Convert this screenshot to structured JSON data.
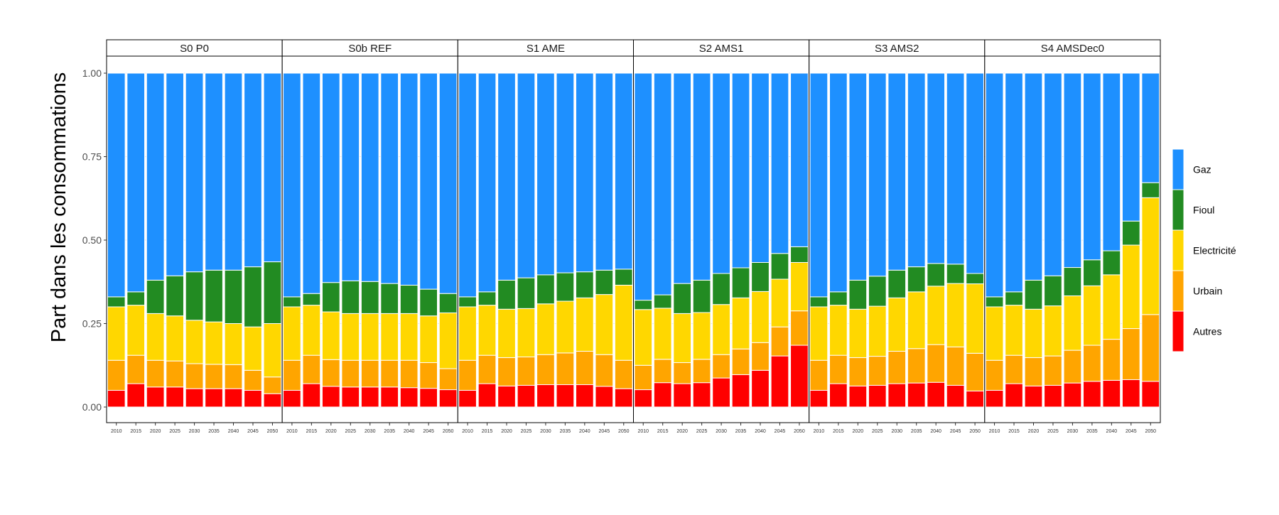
{
  "chart_data": {
    "type": "bar",
    "stacked": true,
    "ylabel": "Part dans les consommations",
    "xlabel": "",
    "ylim": [
      0,
      1
    ],
    "y_ticks": [
      "0.00",
      "0.25",
      "0.50",
      "0.75",
      "1.00"
    ],
    "y_tick_values": [
      0,
      0.25,
      0.5,
      0.75,
      1
    ],
    "categories": [
      "2010",
      "2015",
      "2020",
      "2025",
      "2030",
      "2035",
      "2040",
      "2045",
      "2050"
    ],
    "x_tick_labels": [
      "2010",
      "2015",
      "2020",
      "2025",
      "2030",
      "2035",
      "2040",
      "2045",
      "2050"
    ],
    "legend_position": "right",
    "grid": true,
    "series_order": [
      "Autres",
      "Urbain",
      "Electricité",
      "Fioul",
      "Gaz"
    ],
    "legend": [
      {
        "name": "Gaz",
        "color": "#1E90FF"
      },
      {
        "name": "Fioul",
        "color": "#228B22"
      },
      {
        "name": "Electricité",
        "color": "#FFD700"
      },
      {
        "name": "Urbain",
        "color": "#FFA500"
      },
      {
        "name": "Autres",
        "color": "#FF0000"
      }
    ],
    "panels": [
      {
        "title": "S0 P0",
        "series": [
          {
            "name": "Autres",
            "values": [
              0.05,
              0.07,
              0.06,
              0.06,
              0.055,
              0.055,
              0.055,
              0.05,
              0.04
            ]
          },
          {
            "name": "Urbain",
            "values": [
              0.09,
              0.085,
              0.08,
              0.078,
              0.075,
              0.073,
              0.072,
              0.06,
              0.05
            ]
          },
          {
            "name": "Electricité",
            "values": [
              0.16,
              0.15,
              0.14,
              0.135,
              0.13,
              0.127,
              0.123,
              0.13,
              0.16
            ]
          },
          {
            "name": "Fioul",
            "values": [
              0.03,
              0.04,
              0.1,
              0.12,
              0.145,
              0.155,
              0.16,
              0.18,
              0.185
            ]
          },
          {
            "name": "Gaz",
            "values": [
              0.67,
              0.655,
              0.62,
              0.607,
              0.595,
              0.59,
              0.59,
              0.58,
              0.565
            ]
          }
        ]
      },
      {
        "title": "S0b REF",
        "series": [
          {
            "name": "Autres",
            "values": [
              0.05,
              0.07,
              0.062,
              0.06,
              0.06,
              0.06,
              0.058,
              0.056,
              0.052
            ]
          },
          {
            "name": "Urbain",
            "values": [
              0.09,
              0.085,
              0.08,
              0.08,
              0.08,
              0.08,
              0.082,
              0.077,
              0.063
            ]
          },
          {
            "name": "Electricité",
            "values": [
              0.16,
              0.15,
              0.143,
              0.14,
              0.14,
              0.14,
              0.14,
              0.14,
              0.167
            ]
          },
          {
            "name": "Fioul",
            "values": [
              0.03,
              0.035,
              0.088,
              0.098,
              0.096,
              0.09,
              0.085,
              0.08,
              0.058
            ]
          },
          {
            "name": "Gaz",
            "values": [
              0.67,
              0.66,
              0.627,
              0.622,
              0.624,
              0.63,
              0.635,
              0.647,
              0.66
            ]
          }
        ]
      },
      {
        "title": "S1 AME",
        "series": [
          {
            "name": "Autres",
            "values": [
              0.05,
              0.07,
              0.063,
              0.065,
              0.067,
              0.067,
              0.067,
              0.062,
              0.055
            ]
          },
          {
            "name": "Urbain",
            "values": [
              0.09,
              0.085,
              0.085,
              0.085,
              0.09,
              0.095,
              0.1,
              0.095,
              0.085
            ]
          },
          {
            "name": "Electricité",
            "values": [
              0.16,
              0.15,
              0.145,
              0.145,
              0.152,
              0.155,
              0.16,
              0.18,
              0.225
            ]
          },
          {
            "name": "Fioul",
            "values": [
              0.03,
              0.04,
              0.087,
              0.092,
              0.087,
              0.085,
              0.078,
              0.073,
              0.048
            ]
          },
          {
            "name": "Gaz",
            "values": [
              0.67,
              0.655,
              0.62,
              0.613,
              0.604,
              0.598,
              0.595,
              0.59,
              0.587
            ]
          }
        ]
      },
      {
        "title": "S2 AMS1",
        "series": [
          {
            "name": "Autres",
            "values": [
              0.052,
              0.073,
              0.07,
              0.073,
              0.087,
              0.097,
              0.11,
              0.153,
              0.185
            ]
          },
          {
            "name": "Urbain",
            "values": [
              0.073,
              0.07,
              0.063,
              0.07,
              0.07,
              0.077,
              0.083,
              0.087,
              0.103
            ]
          },
          {
            "name": "Electricité",
            "values": [
              0.167,
              0.153,
              0.147,
              0.14,
              0.15,
              0.153,
              0.153,
              0.143,
              0.145
            ]
          },
          {
            "name": "Fioul",
            "values": [
              0.028,
              0.04,
              0.09,
              0.097,
              0.093,
              0.09,
              0.087,
              0.077,
              0.047
            ]
          },
          {
            "name": "Gaz",
            "values": [
              0.68,
              0.664,
              0.63,
              0.62,
              0.6,
              0.583,
              0.567,
              0.54,
              0.52
            ]
          }
        ]
      },
      {
        "title": "S3 AMS2",
        "series": [
          {
            "name": "Autres",
            "values": [
              0.05,
              0.07,
              0.063,
              0.065,
              0.07,
              0.072,
              0.074,
              0.065,
              0.048
            ]
          },
          {
            "name": "Urbain",
            "values": [
              0.09,
              0.085,
              0.085,
              0.087,
              0.097,
              0.103,
              0.113,
              0.115,
              0.113
            ]
          },
          {
            "name": "Electricité",
            "values": [
              0.16,
              0.15,
              0.145,
              0.15,
              0.16,
              0.17,
              0.175,
              0.19,
              0.208
            ]
          },
          {
            "name": "Fioul",
            "values": [
              0.03,
              0.04,
              0.087,
              0.09,
              0.083,
              0.075,
              0.068,
              0.058,
              0.031
            ]
          },
          {
            "name": "Gaz",
            "values": [
              0.67,
              0.655,
              0.62,
              0.608,
              0.59,
              0.58,
              0.57,
              0.572,
              0.6
            ]
          }
        ]
      },
      {
        "title": "S4 AMSDec0",
        "series": [
          {
            "name": "Autres",
            "values": [
              0.05,
              0.07,
              0.063,
              0.065,
              0.072,
              0.077,
              0.08,
              0.082,
              0.077
            ]
          },
          {
            "name": "Urbain",
            "values": [
              0.09,
              0.085,
              0.085,
              0.088,
              0.098,
              0.108,
              0.123,
              0.153,
              0.2
            ]
          },
          {
            "name": "Electricité",
            "values": [
              0.16,
              0.15,
              0.145,
              0.15,
              0.163,
              0.178,
              0.193,
              0.25,
              0.35
            ]
          },
          {
            "name": "Fioul",
            "values": [
              0.03,
              0.04,
              0.087,
              0.09,
              0.085,
              0.078,
              0.072,
              0.072,
              0.045
            ]
          },
          {
            "name": "Gaz",
            "values": [
              0.67,
              0.655,
              0.62,
              0.607,
              0.582,
              0.559,
              0.532,
              0.443,
              0.328
            ]
          }
        ]
      }
    ]
  }
}
